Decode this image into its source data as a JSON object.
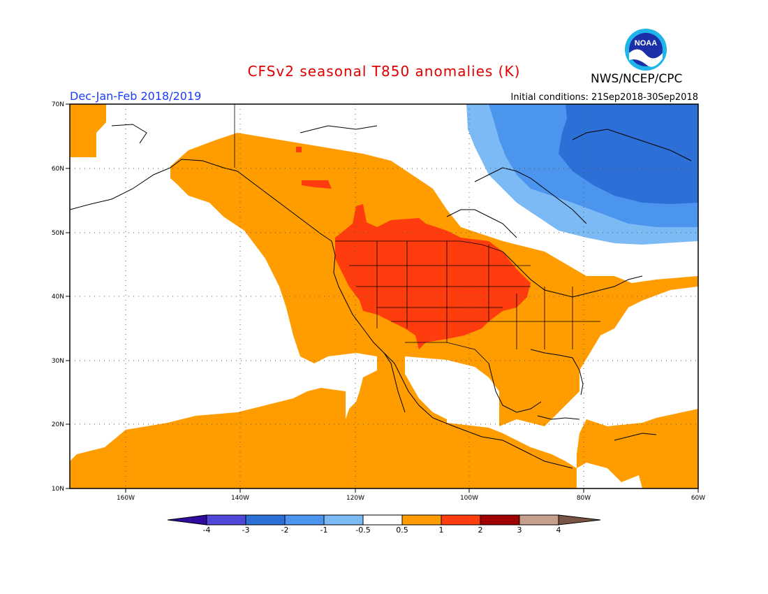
{
  "title": "CFSv2 seasonal T850 anomalies (K)",
  "agency": "NWS/NCEP/CPC",
  "logo_text": "NOAA",
  "season": "Dec-Jan-Feb 2018/2019",
  "initial_conditions": "Initial conditions: 21Sep2018-30Sep2018",
  "map": {
    "lon_labels": [
      "160W",
      "140W",
      "120W",
      "100W",
      "80W",
      "60W"
    ],
    "lat_labels": [
      "70N",
      "60N",
      "50N",
      "40N",
      "30N",
      "20N",
      "10N"
    ],
    "extent": {
      "lon": [
        -170,
        -60
      ],
      "lat": [
        10,
        70
      ]
    }
  },
  "colorbar": {
    "labels": [
      "-4",
      "-3",
      "-2",
      "-1",
      "-0.5",
      "0.5",
      "1",
      "2",
      "3",
      "4"
    ],
    "colors": [
      "#2e0b9e",
      "#5046d8",
      "#2c6fd6",
      "#4c95ef",
      "#7bbaf5",
      "#ffffff",
      "#ff9d00",
      "#ff3c0d",
      "#a10000",
      "#c7a08c",
      "#7a5545"
    ]
  },
  "colors": {
    "orange": "#ff9d00",
    "red": "#ff3c0d",
    "blue_light": "#7bbaf5",
    "blue_mid": "#4c95ef",
    "blue_dark": "#2c6fd6",
    "title_red": "#e00000",
    "season_blue": "#1a3cff"
  }
}
